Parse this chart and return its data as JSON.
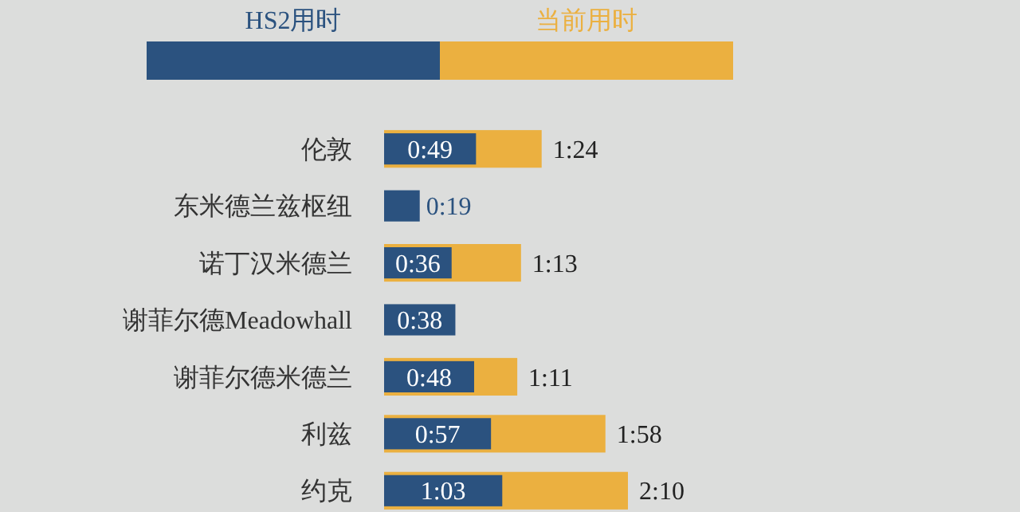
{
  "chart_data": {
    "type": "bar",
    "orientation": "horizontal",
    "legend": "top",
    "data_labels": true,
    "categories": [
      "伦敦",
      "东米德兰兹枢纽",
      "诺丁汉米德兰",
      "谢菲尔德Meadowhall",
      "谢菲尔德米德兰",
      "利兹",
      "约克"
    ],
    "series": [
      {
        "name": "HS2用时",
        "color": "#2b527f",
        "values": [
          49,
          19,
          36,
          38,
          48,
          57,
          63
        ],
        "value_labels": [
          "0:49",
          "0:19",
          "0:36",
          "0:38",
          "0:48",
          "0:57",
          "1:03"
        ]
      },
      {
        "name": "当前用时",
        "color": "#ebb040",
        "values": [
          84,
          null,
          73,
          null,
          71,
          118,
          130
        ],
        "value_labels": [
          "1:24",
          null,
          "1:13",
          null,
          "1:11",
          "1:58",
          "2:10"
        ]
      }
    ]
  }
}
